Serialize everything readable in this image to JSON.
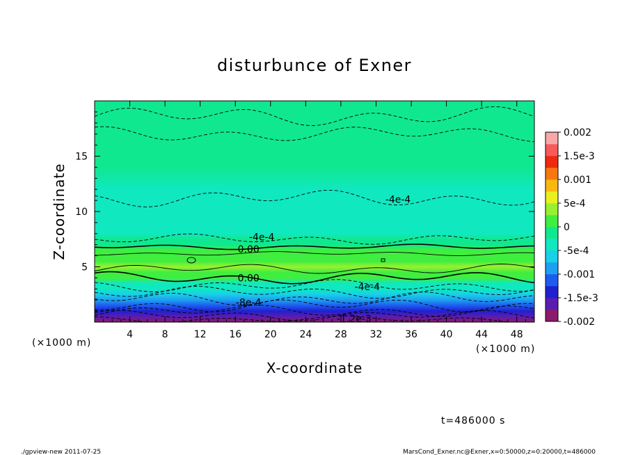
{
  "chart_data": {
    "type": "heatmap",
    "title": "disturbunce of Exner",
    "xlabel": "X-coordinate",
    "ylabel": "Z-coordinate",
    "x_unit_left": "(×1000 m)",
    "x_unit_right": "(×1000 m)",
    "xlim": [
      0,
      50
    ],
    "ylim": [
      0,
      20
    ],
    "x_ticks": [
      "4",
      "8",
      "12",
      "16",
      "20",
      "24",
      "28",
      "32",
      "36",
      "40",
      "44",
      "48"
    ],
    "x_tick_values": [
      4,
      8,
      12,
      16,
      20,
      24,
      28,
      32,
      36,
      40,
      44,
      48
    ],
    "y_ticks": [
      "5",
      "10",
      "15"
    ],
    "y_tick_values": [
      5,
      10,
      15
    ],
    "colorbar": {
      "labels": [
        "0.002",
        "1.5e-3",
        "0.001",
        "5e-4",
        "0",
        "-5e-4",
        "-0.001",
        "-1.5e-3",
        "-0.002"
      ],
      "values": [
        0.002,
        0.0015,
        0.001,
        0.0005,
        0,
        -0.0005,
        -0.001,
        -0.0015,
        -0.002
      ],
      "colors": [
        "#8b1a6b",
        "#5a1db0",
        "#2020d0",
        "#1e5cf0",
        "#1ea0f0",
        "#18d0e8",
        "#10e8c0",
        "#10e890",
        "#40ee40",
        "#98f030",
        "#e8f020",
        "#f8b810",
        "#f87810",
        "#f02810",
        "#f85a5a",
        "#f8a8a8"
      ]
    },
    "contour_labels": [
      "-4e-4",
      "-4e-4",
      "0.00",
      "0.00",
      "-4e-4",
      "-8e-4",
      "-1.2e-3"
    ],
    "profile": {
      "z": [
        0,
        0.5,
        1,
        1.5,
        2,
        2.5,
        3,
        3.5,
        4,
        4.5,
        5,
        5.5,
        6,
        6.5,
        7,
        7.5,
        8,
        9,
        10,
        11,
        12,
        14,
        16,
        18,
        20
      ],
      "value": [
        -0.0019,
        -0.0016,
        -0.0013,
        -0.0011,
        -0.0009,
        -0.0007,
        -0.0005,
        -0.0003,
        0.0,
        0.0002,
        0.00025,
        0.0002,
        0.00012,
        3e-05,
        -5e-05,
        -0.00018,
        -0.00028,
        -0.00032,
        -0.00036,
        -0.00032,
        -0.0003,
        -0.00024,
        -0.0002,
        -0.00018,
        -0.00018
      ]
    },
    "grid": false,
    "legend": "right"
  },
  "time_label": "t=486000 s",
  "footer": {
    "left": "./gpview-new  2011-07-25",
    "right": "MarsCond_Exner.nc@Exner,x=0:50000,z=0:20000,t=486000"
  }
}
